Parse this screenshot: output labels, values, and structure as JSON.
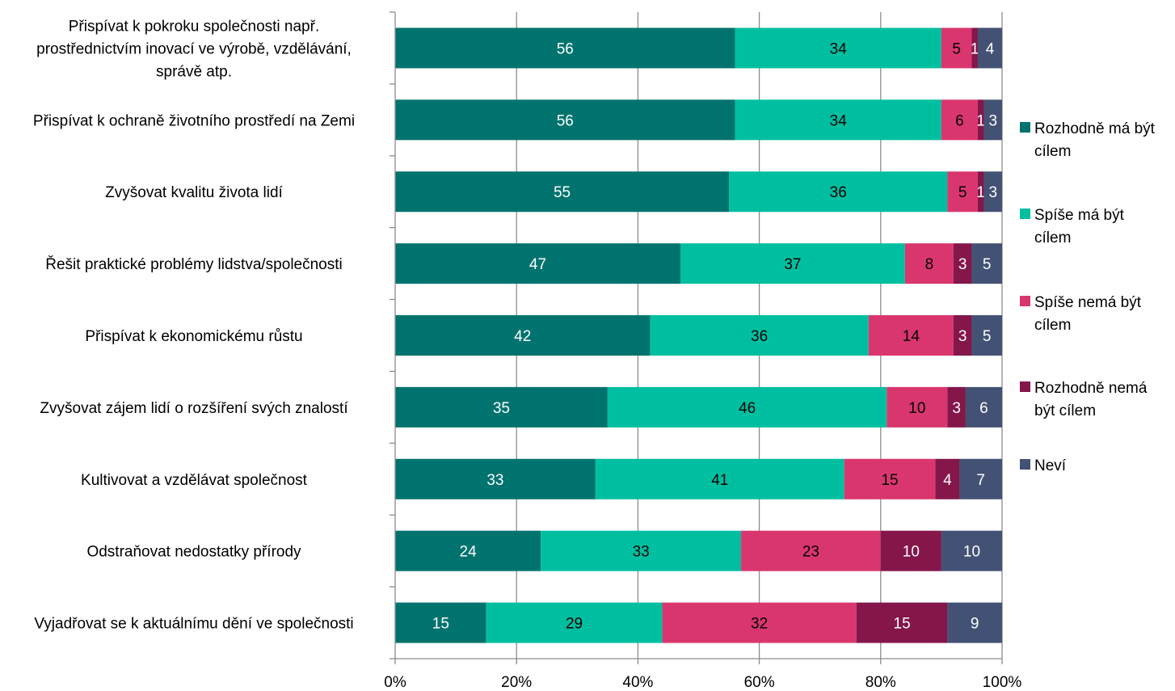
{
  "chart_data": {
    "type": "bar",
    "orientation": "horizontal",
    "stacked": "percent",
    "categories": [
      "Přispívat k pokroku společnosti např. prostřednictvím inovací ve výrobě, vzdělávání, správě atp.",
      "Přispívat k ochraně životního prostředí na Zemi",
      "Zvyšovat kvalitu života lidí",
      "Řešit praktické problémy lidstva/společnosti",
      "Přispívat k ekonomickému růstu",
      "Zvyšovat zájem lidí o rozšíření svých znalostí",
      "Kultivovat a vzdělávat společnost",
      "Odstraňovat nedostatky přírody",
      "Vyjadřovat se k aktuálnímu dění ve společnosti"
    ],
    "category_lines": [
      [
        "Přispívat k pokroku společnosti např.",
        "prostřednictvím inovací ve výrobě, vzdělávání,",
        "správě atp."
      ],
      [
        "Přispívat k ochraně životního prostředí na Zemi"
      ],
      [
        "Zvyšovat kvalitu života lidí"
      ],
      [
        "Řešit praktické problémy lidstva/společnosti"
      ],
      [
        "Přispívat k ekonomickému růstu"
      ],
      [
        "Zvyšovat zájem lidí o rozšíření svých znalostí"
      ],
      [
        "Kultivovat a vzdělávat společnost"
      ],
      [
        "Odstraňovat nedostatky přírody"
      ],
      [
        "Vyjadřovat se k aktuálnímu dění ve společnosti"
      ]
    ],
    "series": [
      {
        "name": "Rozhodně má být cílem",
        "color": "#00736E",
        "label_color": "#FFFFFF",
        "values": [
          56,
          56,
          55,
          47,
          42,
          35,
          33,
          24,
          15
        ]
      },
      {
        "name": "Spíše má být cílem",
        "color": "#00BFA0",
        "label_color": "#000000",
        "values": [
          34,
          34,
          36,
          37,
          36,
          46,
          41,
          33,
          29
        ]
      },
      {
        "name": "Spíše nemá být cílem",
        "color": "#D9366F",
        "label_color": "#000000",
        "values": [
          5,
          6,
          5,
          8,
          14,
          10,
          15,
          23,
          32
        ]
      },
      {
        "name": "Rozhodně nemá být cílem",
        "color": "#84164A",
        "label_color": "#FFFFFF",
        "values": [
          1,
          1,
          1,
          3,
          3,
          3,
          4,
          10,
          15
        ]
      },
      {
        "name": "Neví",
        "color": "#435274",
        "label_color": "#FFFFFF",
        "values": [
          4,
          3,
          3,
          5,
          5,
          6,
          7,
          10,
          9
        ]
      }
    ],
    "legend": {
      "position": "right",
      "entries": [
        [
          "Rozhodně má být",
          "cílem"
        ],
        [
          "Spíše má být",
          "cílem"
        ],
        [
          "Spíše nemá být",
          "cílem"
        ],
        [
          "Rozhodně nemá",
          "být cílem"
        ],
        [
          "Neví"
        ]
      ]
    },
    "x_ticks": [
      "0%",
      "20%",
      "40%",
      "60%",
      "80%",
      "100%"
    ],
    "xlim": [
      0,
      100
    ],
    "grid": "vertical",
    "title": "",
    "xlabel": "",
    "ylabel": "",
    "colors": {
      "grid": "#8C8C8C",
      "axis": "#8C8C8C"
    }
  }
}
